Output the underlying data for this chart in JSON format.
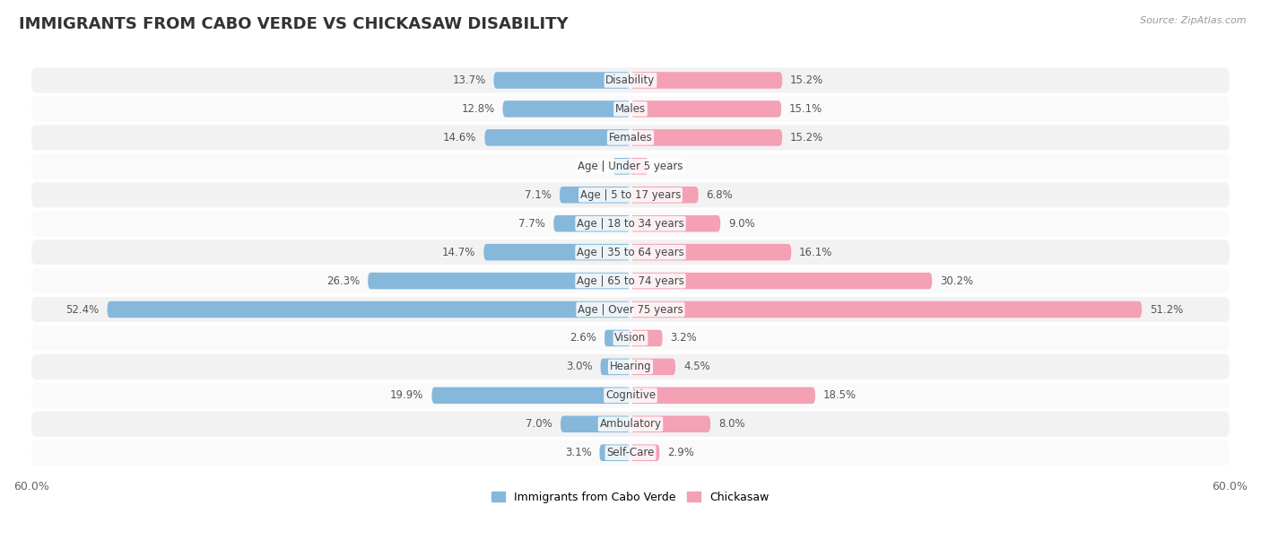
{
  "title": "IMMIGRANTS FROM CABO VERDE VS CHICKASAW DISABILITY",
  "source": "Source: ZipAtlas.com",
  "categories": [
    "Disability",
    "Males",
    "Females",
    "Age | Under 5 years",
    "Age | 5 to 17 years",
    "Age | 18 to 34 years",
    "Age | 35 to 64 years",
    "Age | 65 to 74 years",
    "Age | Over 75 years",
    "Vision",
    "Hearing",
    "Cognitive",
    "Ambulatory",
    "Self-Care"
  ],
  "cabo_verde": [
    13.7,
    12.8,
    14.6,
    1.7,
    7.1,
    7.7,
    14.7,
    26.3,
    52.4,
    2.6,
    3.0,
    19.9,
    7.0,
    3.1
  ],
  "chickasaw": [
    15.2,
    15.1,
    15.2,
    1.7,
    6.8,
    9.0,
    16.1,
    30.2,
    51.2,
    3.2,
    4.5,
    18.5,
    8.0,
    2.9
  ],
  "cabo_verde_color": "#85b8db",
  "chickasaw_color": "#f4a0b5",
  "cabo_verde_color_dark": "#5a9ec8",
  "chickasaw_color_dark": "#e8607a",
  "max_val": 60.0,
  "background_color": "#ffffff",
  "row_bg_even": "#f2f2f2",
  "row_bg_odd": "#fafafa",
  "legend_cabo": "Immigrants from Cabo Verde",
  "legend_chickasaw": "Chickasaw",
  "title_fontsize": 13,
  "label_fontsize": 8.5,
  "value_fontsize": 8.5
}
